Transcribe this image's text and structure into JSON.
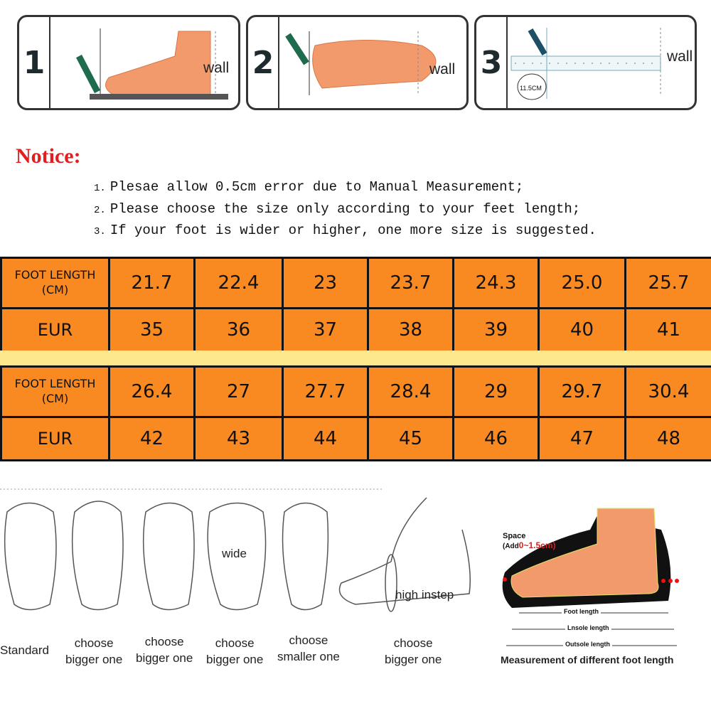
{
  "steps": [
    {
      "number": "1",
      "wall_label": "wall"
    },
    {
      "number": "2",
      "wall_label": "wall"
    },
    {
      "number": "3",
      "wall_label": "wall",
      "measure_label": "11.5CM"
    }
  ],
  "notice": {
    "title": "Notice:",
    "items": [
      {
        "num": "1.",
        "text": "Plesae allow 0.5cm error due to Manual Measurement;"
      },
      {
        "num": "2.",
        "text": "Please choose the size only according to your feet length;"
      },
      {
        "num": "3.",
        "text": "If your foot is wider or higher, one more size is suggested."
      }
    ]
  },
  "size_tables": [
    {
      "foot_length_label": [
        "FOOT LENGTH",
        "(CM)"
      ],
      "eur_label": "EUR",
      "foot_length": [
        "21.7",
        "22.4",
        "23",
        "23.7",
        "24.3",
        "25.0",
        "25.7"
      ],
      "eur": [
        "35",
        "36",
        "37",
        "38",
        "39",
        "40",
        "41"
      ]
    },
    {
      "foot_length_label": [
        "FOOT LENGTH",
        "(CM)"
      ],
      "eur_label": "EUR",
      "foot_length": [
        "26.4",
        "27",
        "27.7",
        "28.4",
        "29",
        "29.7",
        "30.4"
      ],
      "eur": [
        "42",
        "43",
        "44",
        "45",
        "46",
        "47",
        "48"
      ]
    }
  ],
  "colors": {
    "cell": "#f98a22",
    "band": "#fde88c",
    "notice": "#e41e1e"
  },
  "foot_types": [
    {
      "caption": [
        "Standard"
      ]
    },
    {
      "caption": [
        "choose",
        "bigger one"
      ]
    },
    {
      "caption": [
        "choose",
        "bigger one"
      ]
    },
    {
      "caption": [
        "choose",
        "bigger one"
      ],
      "annotation": "wide"
    },
    {
      "caption": [
        "choose",
        "smaller one"
      ]
    },
    {
      "caption": [
        "choose",
        "bigger one"
      ],
      "annotation": "high instep"
    }
  ],
  "measurement": {
    "space_label": "Space",
    "add_label": "(Add",
    "add_value": "0~1.5cm)",
    "foot_length": "Foot length",
    "insole_length": "Lnsole length",
    "outsole_length": "Outsole length",
    "caption": "Measurement of different foot length"
  }
}
